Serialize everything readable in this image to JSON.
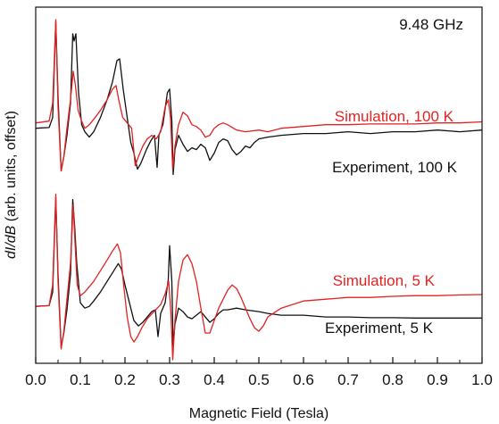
{
  "chart_data": {
    "type": "line",
    "title": "",
    "xlabel": "Magnetic Field (Tesla)",
    "ylabel_italic": "dI/dB",
    "ylabel_rest": " (arb. units, offset)",
    "xlim": [
      0.0,
      1.0
    ],
    "ylim": [
      0.0,
      10.0
    ],
    "x_ticks": [
      "0.0",
      "0.1",
      "0.2",
      "0.3",
      "0.4",
      "0.5",
      "0.6",
      "0.7",
      "0.8",
      "0.9",
      "1.0"
    ],
    "y_ticks_shown": false,
    "grid": false,
    "legend": "none",
    "annotations": {
      "frequency": "9.48 GHz",
      "sim_100": "Simulation, 100 K",
      "exp_100": "Experiment, 100 K",
      "sim_5": "Simulation, 5 K",
      "exp_5": "Experiment, 5 K"
    },
    "colors": {
      "simulation": "#e32222",
      "experiment": "#111111"
    },
    "series": [
      {
        "label_ref": "exp_100",
        "color": "#111111",
        "points": [
          [
            0.0,
            6.6
          ],
          [
            0.03,
            6.62
          ],
          [
            0.038,
            6.9
          ],
          [
            0.045,
            9.6
          ],
          [
            0.05,
            7.5
          ],
          [
            0.057,
            5.4
          ],
          [
            0.063,
            5.8
          ],
          [
            0.07,
            6.4
          ],
          [
            0.078,
            7.3
          ],
          [
            0.083,
            9.25
          ],
          [
            0.086,
            9.05
          ],
          [
            0.09,
            9.25
          ],
          [
            0.096,
            7.6
          ],
          [
            0.103,
            6.7
          ],
          [
            0.11,
            6.5
          ],
          [
            0.12,
            6.35
          ],
          [
            0.13,
            6.5
          ],
          [
            0.145,
            6.9
          ],
          [
            0.16,
            7.4
          ],
          [
            0.172,
            7.9
          ],
          [
            0.182,
            8.5
          ],
          [
            0.188,
            8.55
          ],
          [
            0.196,
            7.7
          ],
          [
            0.205,
            6.9
          ],
          [
            0.213,
            6.2
          ],
          [
            0.22,
            5.9
          ],
          [
            0.228,
            5.45
          ],
          [
            0.235,
            5.6
          ],
          [
            0.248,
            6.0
          ],
          [
            0.258,
            6.25
          ],
          [
            0.266,
            6.4
          ],
          [
            0.272,
            5.5
          ],
          [
            0.276,
            6.4
          ],
          [
            0.285,
            6.7
          ],
          [
            0.295,
            7.6
          ],
          [
            0.3,
            7.7
          ],
          [
            0.305,
            6.8
          ],
          [
            0.308,
            5.3
          ],
          [
            0.312,
            6.0
          ],
          [
            0.32,
            6.4
          ],
          [
            0.33,
            6.15
          ],
          [
            0.34,
            5.95
          ],
          [
            0.35,
            6.05
          ],
          [
            0.36,
            6.0
          ],
          [
            0.37,
            6.15
          ],
          [
            0.38,
            6.05
          ],
          [
            0.39,
            5.7
          ],
          [
            0.4,
            5.9
          ],
          [
            0.41,
            6.2
          ],
          [
            0.42,
            6.3
          ],
          [
            0.43,
            6.25
          ],
          [
            0.44,
            6.0
          ],
          [
            0.45,
            5.85
          ],
          [
            0.46,
            5.95
          ],
          [
            0.47,
            6.1
          ],
          [
            0.48,
            6.05
          ],
          [
            0.49,
            6.2
          ],
          [
            0.5,
            6.3
          ],
          [
            0.52,
            6.35
          ],
          [
            0.55,
            6.4
          ],
          [
            0.6,
            6.45
          ],
          [
            0.65,
            6.45
          ],
          [
            0.7,
            6.5
          ],
          [
            0.75,
            6.45
          ],
          [
            0.8,
            6.5
          ],
          [
            0.85,
            6.5
          ],
          [
            0.9,
            6.55
          ],
          [
            0.95,
            6.5
          ],
          [
            1.0,
            6.55
          ]
        ]
      },
      {
        "label_ref": "sim_100",
        "color": "#e32222",
        "points": [
          [
            0.0,
            6.75
          ],
          [
            0.03,
            6.8
          ],
          [
            0.038,
            7.3
          ],
          [
            0.045,
            9.65
          ],
          [
            0.05,
            7.2
          ],
          [
            0.057,
            5.4
          ],
          [
            0.063,
            5.8
          ],
          [
            0.07,
            6.6
          ],
          [
            0.078,
            7.4
          ],
          [
            0.084,
            8.2
          ],
          [
            0.089,
            7.8
          ],
          [
            0.095,
            7.1
          ],
          [
            0.103,
            6.8
          ],
          [
            0.11,
            6.6
          ],
          [
            0.12,
            6.7
          ],
          [
            0.13,
            6.85
          ],
          [
            0.145,
            7.1
          ],
          [
            0.16,
            7.4
          ],
          [
            0.172,
            7.7
          ],
          [
            0.18,
            7.8
          ],
          [
            0.186,
            7.4
          ],
          [
            0.195,
            6.9
          ],
          [
            0.205,
            6.75
          ],
          [
            0.215,
            6.6
          ],
          [
            0.223,
            5.55
          ],
          [
            0.23,
            5.8
          ],
          [
            0.24,
            6.1
          ],
          [
            0.25,
            6.3
          ],
          [
            0.26,
            6.4
          ],
          [
            0.27,
            6.3
          ],
          [
            0.28,
            6.5
          ],
          [
            0.29,
            7.2
          ],
          [
            0.297,
            7.4
          ],
          [
            0.302,
            6.9
          ],
          [
            0.307,
            5.45
          ],
          [
            0.312,
            6.1
          ],
          [
            0.32,
            6.7
          ],
          [
            0.33,
            7.05
          ],
          [
            0.34,
            6.95
          ],
          [
            0.35,
            6.7
          ],
          [
            0.36,
            6.65
          ],
          [
            0.37,
            6.55
          ],
          [
            0.38,
            6.35
          ],
          [
            0.39,
            6.4
          ],
          [
            0.4,
            6.6
          ],
          [
            0.41,
            6.7
          ],
          [
            0.42,
            6.75
          ],
          [
            0.43,
            6.7
          ],
          [
            0.45,
            6.55
          ],
          [
            0.47,
            6.5
          ],
          [
            0.5,
            6.55
          ],
          [
            0.52,
            6.5
          ],
          [
            0.55,
            6.6
          ],
          [
            0.6,
            6.65
          ],
          [
            0.65,
            6.7
          ],
          [
            0.7,
            6.7
          ],
          [
            0.75,
            6.72
          ],
          [
            0.8,
            6.72
          ],
          [
            0.85,
            6.72
          ],
          [
            0.9,
            6.75
          ],
          [
            0.95,
            6.75
          ],
          [
            1.0,
            6.78
          ]
        ]
      },
      {
        "label_ref": "exp_5",
        "color": "#111111",
        "points": [
          [
            0.0,
            1.6
          ],
          [
            0.03,
            1.62
          ],
          [
            0.038,
            2.0
          ],
          [
            0.045,
            4.65
          ],
          [
            0.05,
            2.5
          ],
          [
            0.057,
            0.45
          ],
          [
            0.063,
            0.85
          ],
          [
            0.07,
            1.5
          ],
          [
            0.078,
            2.5
          ],
          [
            0.083,
            4.6
          ],
          [
            0.087,
            3.9
          ],
          [
            0.092,
            2.8
          ],
          [
            0.1,
            1.7
          ],
          [
            0.11,
            1.55
          ],
          [
            0.12,
            1.6
          ],
          [
            0.13,
            1.75
          ],
          [
            0.145,
            2.0
          ],
          [
            0.16,
            2.3
          ],
          [
            0.175,
            2.6
          ],
          [
            0.185,
            2.8
          ],
          [
            0.192,
            2.65
          ],
          [
            0.2,
            2.2
          ],
          [
            0.21,
            1.7
          ],
          [
            0.22,
            1.2
          ],
          [
            0.23,
            1.05
          ],
          [
            0.24,
            1.15
          ],
          [
            0.25,
            1.3
          ],
          [
            0.26,
            1.45
          ],
          [
            0.268,
            1.5
          ],
          [
            0.274,
            0.75
          ],
          [
            0.28,
            1.4
          ],
          [
            0.29,
            1.7
          ],
          [
            0.297,
            2.35
          ],
          [
            0.3,
            3.3
          ],
          [
            0.305,
            2.3
          ],
          [
            0.308,
            0.5
          ],
          [
            0.312,
            1.1
          ],
          [
            0.32,
            1.55
          ],
          [
            0.33,
            1.45
          ],
          [
            0.34,
            1.3
          ],
          [
            0.35,
            1.25
          ],
          [
            0.36,
            1.35
          ],
          [
            0.37,
            1.45
          ],
          [
            0.38,
            1.3
          ],
          [
            0.39,
            1.15
          ],
          [
            0.4,
            1.25
          ],
          [
            0.41,
            1.4
          ],
          [
            0.42,
            1.5
          ],
          [
            0.43,
            1.5
          ],
          [
            0.45,
            1.55
          ],
          [
            0.47,
            1.5
          ],
          [
            0.5,
            1.45
          ],
          [
            0.52,
            1.4
          ],
          [
            0.55,
            1.35
          ],
          [
            0.6,
            1.35
          ],
          [
            0.65,
            1.3
          ],
          [
            0.7,
            1.3
          ],
          [
            0.75,
            1.28
          ],
          [
            0.8,
            1.28
          ],
          [
            0.85,
            1.27
          ],
          [
            0.9,
            1.27
          ],
          [
            0.95,
            1.27
          ],
          [
            1.0,
            1.27
          ]
        ]
      },
      {
        "label_ref": "sim_5",
        "color": "#e32222",
        "points": [
          [
            0.0,
            1.6
          ],
          [
            0.03,
            1.62
          ],
          [
            0.038,
            2.2
          ],
          [
            0.045,
            4.75
          ],
          [
            0.05,
            2.3
          ],
          [
            0.057,
            0.4
          ],
          [
            0.063,
            0.9
          ],
          [
            0.07,
            1.8
          ],
          [
            0.078,
            2.8
          ],
          [
            0.084,
            4.45
          ],
          [
            0.088,
            3.4
          ],
          [
            0.093,
            2.2
          ],
          [
            0.1,
            1.9
          ],
          [
            0.11,
            2.0
          ],
          [
            0.12,
            2.15
          ],
          [
            0.13,
            2.3
          ],
          [
            0.145,
            2.6
          ],
          [
            0.16,
            2.9
          ],
          [
            0.172,
            3.15
          ],
          [
            0.183,
            3.35
          ],
          [
            0.19,
            3.1
          ],
          [
            0.197,
            2.2
          ],
          [
            0.205,
            1.3
          ],
          [
            0.213,
            0.75
          ],
          [
            0.22,
            0.6
          ],
          [
            0.228,
            0.75
          ],
          [
            0.238,
            1.0
          ],
          [
            0.25,
            1.25
          ],
          [
            0.265,
            1.45
          ],
          [
            0.28,
            1.65
          ],
          [
            0.29,
            1.95
          ],
          [
            0.298,
            2.3
          ],
          [
            0.303,
            1.4
          ],
          [
            0.307,
            0.1
          ],
          [
            0.312,
            1.2
          ],
          [
            0.32,
            2.3
          ],
          [
            0.33,
            2.9
          ],
          [
            0.34,
            3.05
          ],
          [
            0.35,
            2.8
          ],
          [
            0.36,
            2.3
          ],
          [
            0.37,
            1.55
          ],
          [
            0.38,
            0.85
          ],
          [
            0.39,
            0.85
          ],
          [
            0.4,
            1.2
          ],
          [
            0.41,
            1.55
          ],
          [
            0.42,
            1.8
          ],
          [
            0.43,
            2.05
          ],
          [
            0.44,
            2.2
          ],
          [
            0.45,
            2.1
          ],
          [
            0.46,
            1.85
          ],
          [
            0.47,
            1.55
          ],
          [
            0.48,
            1.25
          ],
          [
            0.49,
            1.0
          ],
          [
            0.5,
            0.9
          ],
          [
            0.51,
            1.05
          ],
          [
            0.52,
            1.3
          ],
          [
            0.55,
            1.55
          ],
          [
            0.6,
            1.75
          ],
          [
            0.65,
            1.8
          ],
          [
            0.7,
            1.85
          ],
          [
            0.75,
            1.85
          ],
          [
            0.8,
            1.88
          ],
          [
            0.85,
            1.9
          ],
          [
            0.9,
            1.9
          ],
          [
            0.95,
            1.92
          ],
          [
            1.0,
            1.93
          ]
        ]
      }
    ]
  }
}
